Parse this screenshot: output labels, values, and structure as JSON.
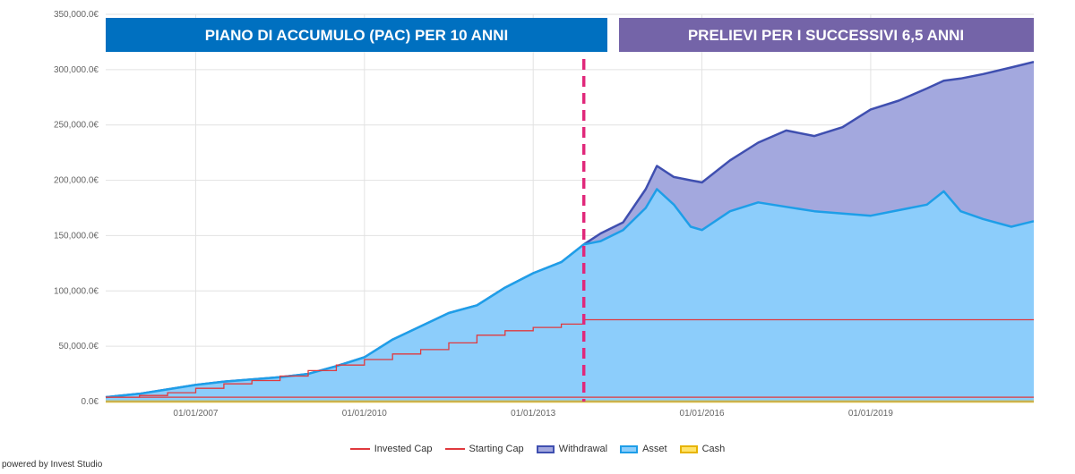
{
  "chart_data": {
    "type": "area",
    "title": "",
    "xlabel": "",
    "ylabel": "",
    "currency_suffix": "€",
    "x_ticks": [
      "01/01/2007",
      "01/01/2010",
      "01/01/2013",
      "01/01/2016",
      "01/01/2019"
    ],
    "y_ticks": [
      "0.0€",
      "50,000.0€",
      "100,000.0€",
      "150,000.0€",
      "200,000.0€",
      "250,000.0€",
      "300,000.0€",
      "350,000.0€"
    ],
    "ylim": [
      0,
      350000
    ],
    "xlim": [
      2005.4,
      2021.9
    ],
    "annotations": {
      "phase_divider_x": 2013.9,
      "banner_left": "PIANO DI ACCUMULO (PAC) PER 10 ANNI",
      "banner_right": "PRELIEVI PER I SUCCESSIVI 6,5 ANNI"
    },
    "series": [
      {
        "name": "Withdrawal",
        "kind": "area",
        "color": "#3f4fb0",
        "fill": "#a3a8de",
        "x": [
          2005.4,
          2006.0,
          2006.5,
          2007.0,
          2007.5,
          2008.0,
          2008.5,
          2009.0,
          2009.5,
          2010.0,
          2010.5,
          2011.0,
          2011.5,
          2012.0,
          2012.5,
          2013.0,
          2013.5,
          2013.9,
          2014.2,
          2014.6,
          2015.0,
          2015.2,
          2015.5,
          2015.8,
          2016.0,
          2016.5,
          2017.0,
          2017.5,
          2018.0,
          2018.5,
          2019.0,
          2019.5,
          2020.0,
          2020.3,
          2020.6,
          2021.0,
          2021.5,
          2021.9
        ],
        "y": [
          4000,
          7000,
          11000,
          15000,
          18000,
          20000,
          22000,
          25000,
          32000,
          40000,
          56000,
          68000,
          80000,
          87000,
          103000,
          116000,
          126000,
          142000,
          152000,
          162000,
          192000,
          213000,
          203000,
          200000,
          198000,
          218000,
          234000,
          245000,
          240000,
          248000,
          264000,
          272000,
          283000,
          290000,
          292000,
          296000,
          302000,
          307000
        ]
      },
      {
        "name": "Asset",
        "kind": "area",
        "color": "#1e9ee8",
        "fill": "#8ccdfb",
        "x": [
          2005.4,
          2006.0,
          2006.5,
          2007.0,
          2007.5,
          2008.0,
          2008.5,
          2009.0,
          2009.5,
          2010.0,
          2010.5,
          2011.0,
          2011.5,
          2012.0,
          2012.5,
          2013.0,
          2013.5,
          2013.9,
          2014.2,
          2014.6,
          2015.0,
          2015.2,
          2015.5,
          2015.8,
          2016.0,
          2016.5,
          2017.0,
          2017.5,
          2018.0,
          2018.5,
          2019.0,
          2019.5,
          2020.0,
          2020.3,
          2020.6,
          2021.0,
          2021.5,
          2021.9
        ],
        "y": [
          4000,
          7000,
          11000,
          15000,
          18000,
          20000,
          22000,
          25000,
          32000,
          40000,
          56000,
          68000,
          80000,
          87000,
          103000,
          116000,
          126000,
          142000,
          145000,
          155000,
          175000,
          192000,
          178000,
          158000,
          155000,
          172000,
          180000,
          176000,
          172000,
          170000,
          168000,
          173000,
          178000,
          190000,
          172000,
          165000,
          158000,
          163000
        ]
      },
      {
        "name": "Invested Cap",
        "kind": "line",
        "color": "#e0393e",
        "x": [
          2005.4,
          2006.0,
          2006.5,
          2007.0,
          2007.5,
          2008.0,
          2008.5,
          2009.0,
          2009.5,
          2010.0,
          2010.5,
          2011.0,
          2011.5,
          2012.0,
          2012.5,
          2013.0,
          2013.5,
          2013.9,
          2014.5,
          2016.0,
          2018.0,
          2020.0,
          2021.9
        ],
        "y": [
          4000,
          5500,
          8000,
          12000,
          16000,
          19000,
          23000,
          28000,
          33000,
          38000,
          43000,
          47000,
          53000,
          60000,
          64000,
          67000,
          70000,
          74000,
          74000,
          74000,
          74000,
          74000,
          74000
        ]
      },
      {
        "name": "Starting Cap",
        "kind": "line",
        "color": "#e0393e",
        "x": [
          2005.4,
          2021.9
        ],
        "y": [
          4000,
          4000
        ]
      },
      {
        "name": "Cash",
        "kind": "area",
        "color": "#f5c400",
        "fill": "#ffe36a",
        "x": [
          2005.4,
          2021.9
        ],
        "y": [
          0,
          0
        ]
      }
    ],
    "legend": {
      "position": "bottom-center",
      "items": [
        {
          "label": "Invested Cap",
          "kind": "line",
          "color": "#e0393e"
        },
        {
          "label": "Starting Cap",
          "kind": "line",
          "color": "#e0393e"
        },
        {
          "label": "Withdrawal",
          "kind": "box",
          "color": "#3f4fb0",
          "fill": "#a3a8de"
        },
        {
          "label": "Asset",
          "kind": "box",
          "color": "#1e9ee8",
          "fill": "#8ccdfb"
        },
        {
          "label": "Cash",
          "kind": "box",
          "color": "#e7b400",
          "fill": "#ffe36a"
        }
      ]
    },
    "grid": true
  },
  "banners": {
    "left_color": "#0070c0",
    "right_color": "#7464a8",
    "divider_color": "#e0287a"
  },
  "footer": {
    "credit": "powered by Invest Studio"
  }
}
